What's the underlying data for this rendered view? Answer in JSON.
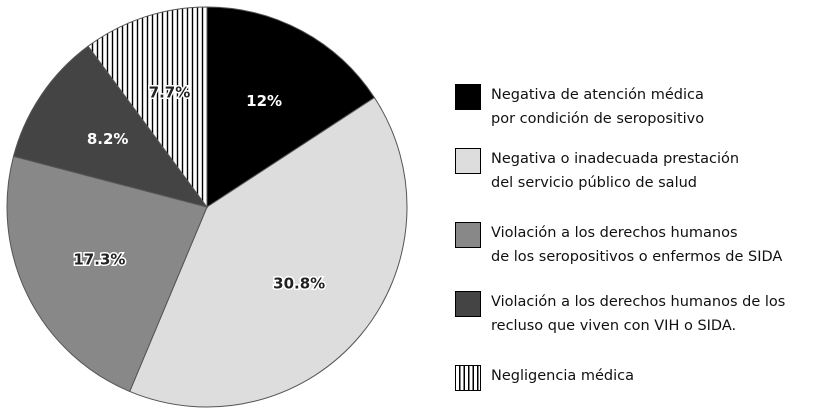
{
  "chart_data": {
    "type": "pie",
    "categories": [
      "Negativa de atención médica\npor condición de seropositivo",
      "Negativa o inadecuada prestación\ndel servicio público de salud",
      "Violación a los derechos humanos\nde los seropositivos o enfermos de SIDA",
      "Violación a los derechos humanos de los\nrecluso que viven con VIH o SIDA.",
      "Negligencia médica"
    ],
    "values": [
      12,
      30.8,
      17.3,
      8.2,
      7.7
    ],
    "value_labels": [
      "12%",
      "30.8%",
      "17.3%",
      "8.2%",
      "7.7%"
    ],
    "colors": [
      "#000000",
      "#dddddd",
      "#888888",
      "#444444",
      "#ffffff"
    ],
    "hatch_index": 4,
    "legend": "right"
  }
}
